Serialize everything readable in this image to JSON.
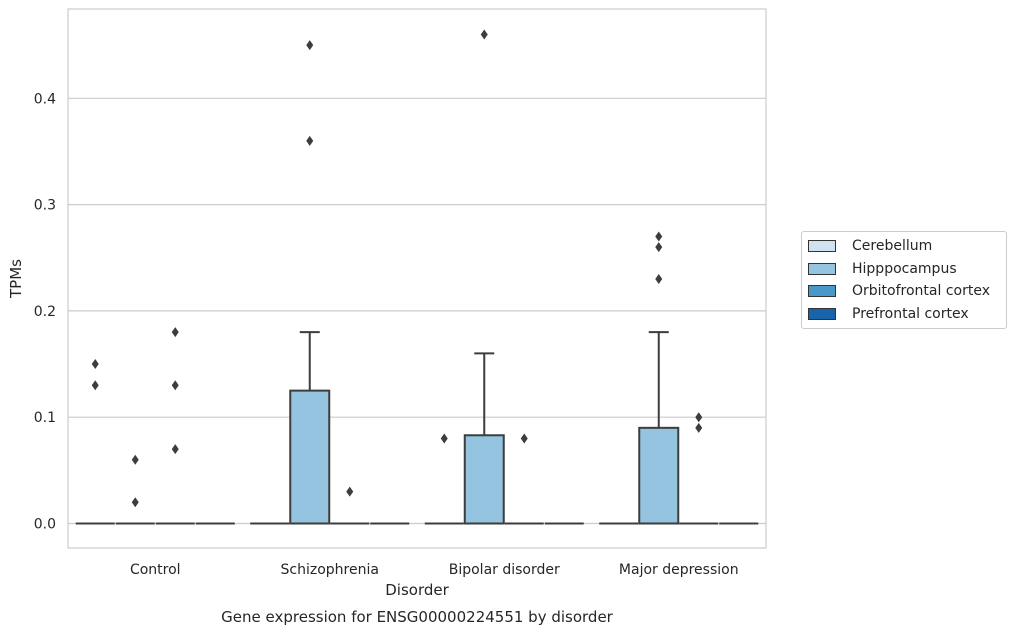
{
  "chart_data": {
    "type": "box",
    "caption": "Gene expression for ENSG00000224551 by disorder",
    "xlabel": "Disorder",
    "ylabel": "TPMs",
    "ylim": [
      -0.023,
      0.49
    ],
    "yticks": [
      0.0,
      0.1,
      0.2,
      0.3,
      0.4
    ],
    "ytick_labels": [
      "0.0",
      "0.1",
      "0.2",
      "0.3",
      "0.4"
    ],
    "grid": "horizontal",
    "categories": [
      "Control",
      "Schizophrenia",
      "Bipolar disorder",
      "Major depression"
    ],
    "legend": {
      "placement": "right",
      "entries": [
        {
          "name": "Cerebellum",
          "color": "#d0e1f2"
        },
        {
          "name": "Hipppocampus",
          "color": "#94c4df"
        },
        {
          "name": "Orbitofrontal cortex",
          "color": "#4a98c9"
        },
        {
          "name": "Prefrontal cortex",
          "color": "#1764ab"
        }
      ]
    },
    "series": [
      {
        "name": "Cerebellum",
        "boxes": [
          {
            "category": "Control",
            "q1": 0,
            "median": 0,
            "q3": 0,
            "whisker_low": 0,
            "whisker_high": 0,
            "outliers": [
              0.13,
              0.15
            ]
          },
          {
            "category": "Schizophrenia",
            "q1": 0,
            "median": 0,
            "q3": 0,
            "whisker_low": 0,
            "whisker_high": 0,
            "outliers": []
          },
          {
            "category": "Bipolar disorder",
            "q1": 0,
            "median": 0,
            "q3": 0,
            "whisker_low": 0,
            "whisker_high": 0,
            "outliers": [
              0.08
            ]
          },
          {
            "category": "Major depression",
            "q1": 0,
            "median": 0,
            "q3": 0,
            "whisker_low": 0,
            "whisker_high": 0,
            "outliers": []
          }
        ]
      },
      {
        "name": "Hipppocampus",
        "boxes": [
          {
            "category": "Control",
            "q1": 0,
            "median": 0,
            "q3": 0,
            "whisker_low": 0,
            "whisker_high": 0,
            "outliers": [
              0.02,
              0.06
            ]
          },
          {
            "category": "Schizophrenia",
            "q1": 0,
            "median": 0,
            "q3": 0.125,
            "whisker_low": 0,
            "whisker_high": 0.18,
            "outliers": [
              0.36,
              0.45
            ]
          },
          {
            "category": "Bipolar disorder",
            "q1": 0,
            "median": 0,
            "q3": 0.083,
            "whisker_low": 0,
            "whisker_high": 0.16,
            "outliers": [
              0.46
            ]
          },
          {
            "category": "Major depression",
            "q1": 0,
            "median": 0,
            "q3": 0.09,
            "whisker_low": 0,
            "whisker_high": 0.18,
            "outliers": [
              0.23,
              0.26,
              0.27
            ]
          }
        ]
      },
      {
        "name": "Orbitofrontal cortex",
        "boxes": [
          {
            "category": "Control",
            "q1": 0,
            "median": 0,
            "q3": 0,
            "whisker_low": 0,
            "whisker_high": 0,
            "outliers": [
              0.07,
              0.13,
              0.18
            ]
          },
          {
            "category": "Schizophrenia",
            "q1": 0,
            "median": 0,
            "q3": 0,
            "whisker_low": 0,
            "whisker_high": 0,
            "outliers": [
              0.03
            ]
          },
          {
            "category": "Bipolar disorder",
            "q1": 0,
            "median": 0,
            "q3": 0,
            "whisker_low": 0,
            "whisker_high": 0,
            "outliers": [
              0.08
            ]
          },
          {
            "category": "Major depression",
            "q1": 0,
            "median": 0,
            "q3": 0,
            "whisker_low": 0,
            "whisker_high": 0,
            "outliers": [
              0.09,
              0.1
            ]
          }
        ]
      },
      {
        "name": "Prefrontal cortex",
        "boxes": [
          {
            "category": "Control",
            "q1": 0,
            "median": 0,
            "q3": 0,
            "whisker_low": 0,
            "whisker_high": 0,
            "outliers": []
          },
          {
            "category": "Schizophrenia",
            "q1": 0,
            "median": 0,
            "q3": 0,
            "whisker_low": 0,
            "whisker_high": 0,
            "outliers": []
          },
          {
            "category": "Bipolar disorder",
            "q1": 0,
            "median": 0,
            "q3": 0,
            "whisker_low": 0,
            "whisker_high": 0,
            "outliers": []
          },
          {
            "category": "Major depression",
            "q1": 0,
            "median": 0,
            "q3": 0,
            "whisker_low": 0,
            "whisker_high": 0,
            "outliers": []
          }
        ]
      }
    ]
  }
}
